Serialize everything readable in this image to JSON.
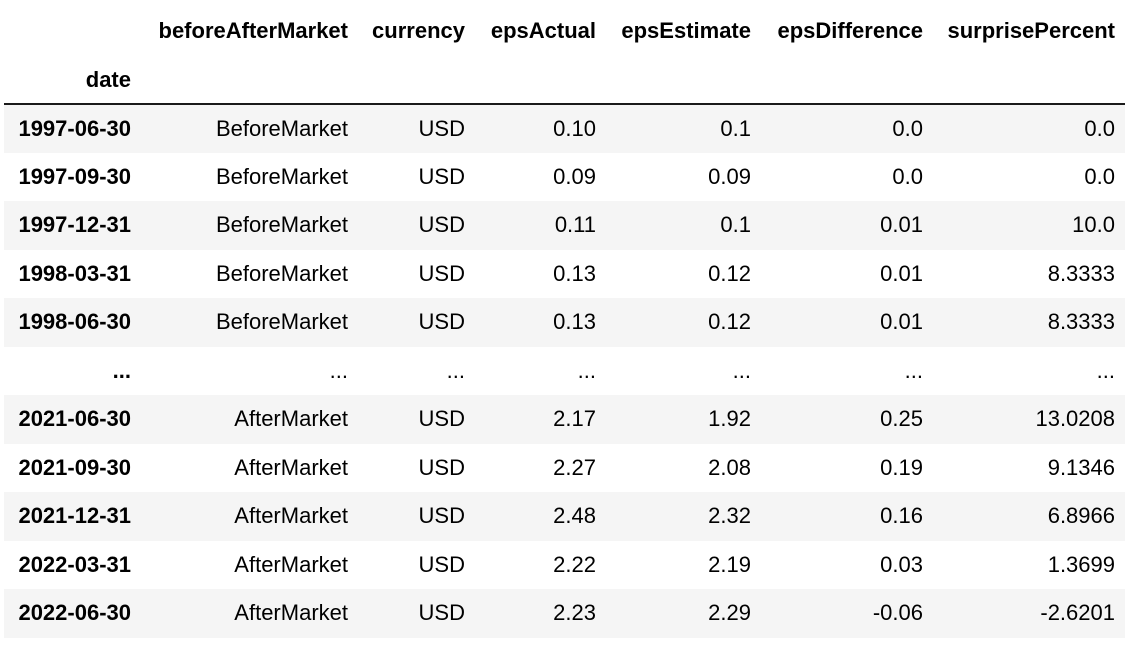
{
  "table": {
    "index_name": "date",
    "columns": [
      "beforeAfterMarket",
      "currency",
      "epsActual",
      "epsEstimate",
      "epsDifference",
      "surprisePercent"
    ],
    "rows": [
      {
        "date": "1997-06-30",
        "cells": [
          "BeforeMarket",
          "USD",
          "0.10",
          "0.1",
          "0.0",
          "0.0"
        ]
      },
      {
        "date": "1997-09-30",
        "cells": [
          "BeforeMarket",
          "USD",
          "0.09",
          "0.09",
          "0.0",
          "0.0"
        ]
      },
      {
        "date": "1997-12-31",
        "cells": [
          "BeforeMarket",
          "USD",
          "0.11",
          "0.1",
          "0.01",
          "10.0"
        ]
      },
      {
        "date": "1998-03-31",
        "cells": [
          "BeforeMarket",
          "USD",
          "0.13",
          "0.12",
          "0.01",
          "8.3333"
        ]
      },
      {
        "date": "1998-06-30",
        "cells": [
          "BeforeMarket",
          "USD",
          "0.13",
          "0.12",
          "0.01",
          "8.3333"
        ]
      },
      {
        "date": "...",
        "cells": [
          "...",
          "...",
          "...",
          "...",
          "...",
          "..."
        ]
      },
      {
        "date": "2021-06-30",
        "cells": [
          "AfterMarket",
          "USD",
          "2.17",
          "1.92",
          "0.25",
          "13.0208"
        ]
      },
      {
        "date": "2021-09-30",
        "cells": [
          "AfterMarket",
          "USD",
          "2.27",
          "2.08",
          "0.19",
          "9.1346"
        ]
      },
      {
        "date": "2021-12-31",
        "cells": [
          "AfterMarket",
          "USD",
          "2.48",
          "2.32",
          "0.16",
          "6.8966"
        ]
      },
      {
        "date": "2022-03-31",
        "cells": [
          "AfterMarket",
          "USD",
          "2.22",
          "2.19",
          "0.03",
          "1.3699"
        ]
      },
      {
        "date": "2022-06-30",
        "cells": [
          "AfterMarket",
          "USD",
          "2.23",
          "2.29",
          "-0.06",
          "-2.6201"
        ]
      }
    ]
  }
}
